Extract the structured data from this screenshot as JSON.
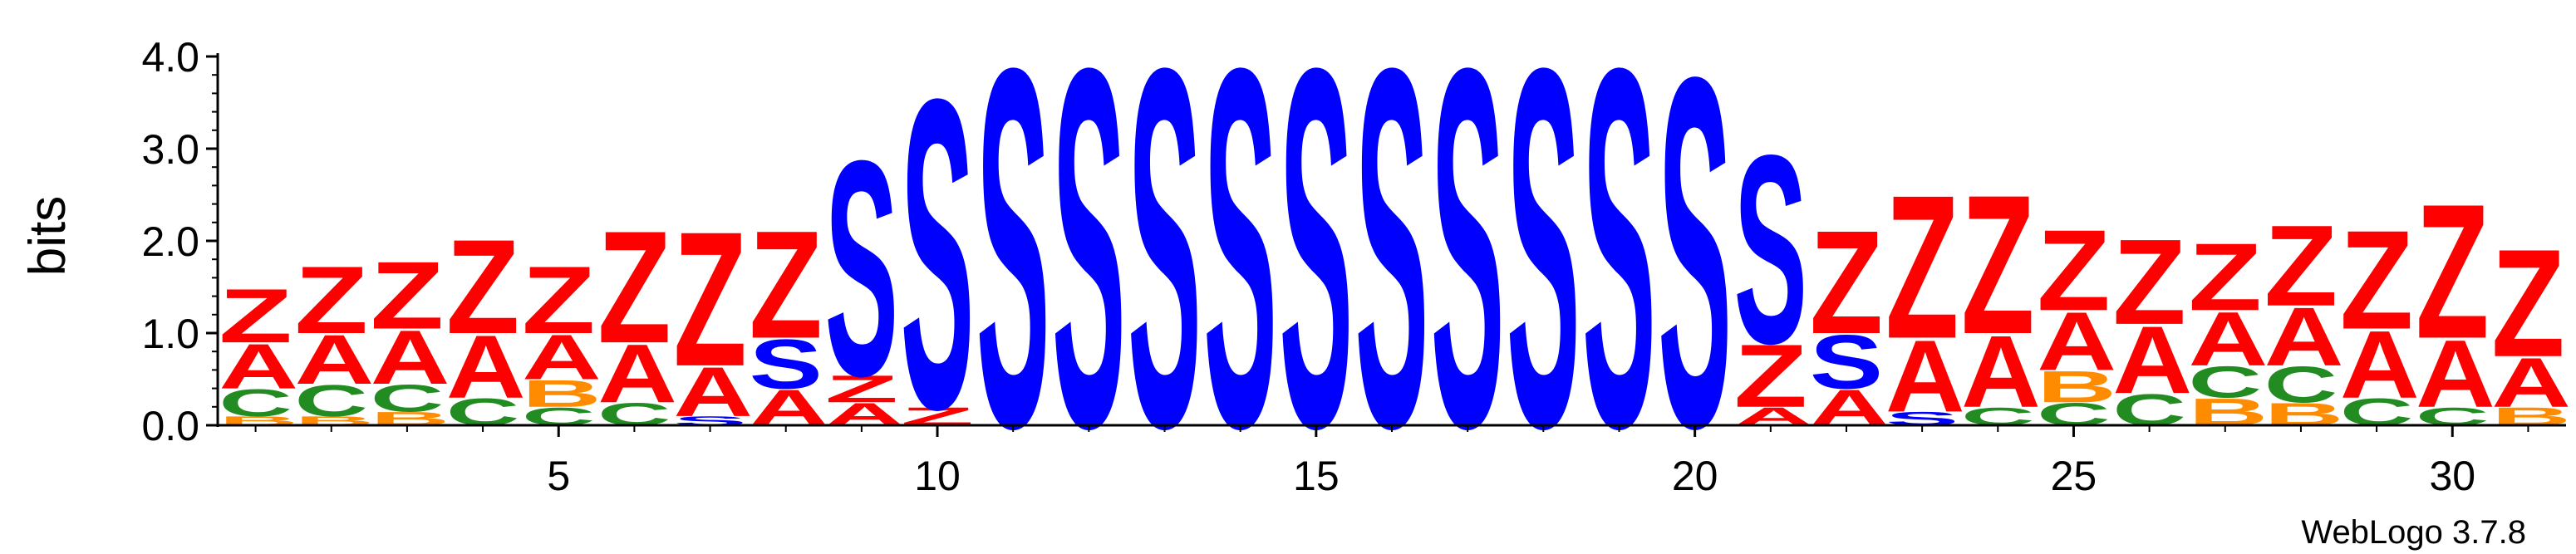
{
  "chart_data": {
    "type": "sequence-logo",
    "ylabel": "bits",
    "ylim": [
      0,
      4.0
    ],
    "y_ticks": [
      "0.0",
      "1.0",
      "2.0",
      "3.0",
      "4.0"
    ],
    "x_ticks": [
      "5",
      "10",
      "15",
      "20",
      "25",
      "30"
    ],
    "x_tick_values": [
      5,
      10,
      15,
      20,
      25,
      30
    ],
    "positions": 31,
    "credit": "WebLogo 3.7.8",
    "colors": {
      "Z": "#ff0000",
      "A": "#ff0000",
      "S": "#0000ff",
      "C": "#228b22",
      "B": "#ff8c00",
      "axis": "#000000"
    },
    "columns": [
      [
        [
          "B",
          0.1
        ],
        [
          "C",
          0.3
        ],
        [
          "A",
          0.5
        ],
        [
          "Z",
          0.6
        ]
      ],
      [
        [
          "B",
          0.1
        ],
        [
          "C",
          0.35
        ],
        [
          "A",
          0.55
        ],
        [
          "Z",
          0.75
        ]
      ],
      [
        [
          "B",
          0.15
        ],
        [
          "C",
          0.3
        ],
        [
          "A",
          0.6
        ],
        [
          "Z",
          0.75
        ]
      ],
      [
        [
          "C",
          0.3
        ],
        [
          "A",
          0.7
        ],
        [
          "Z",
          1.05
        ]
      ],
      [
        [
          "C",
          0.2
        ],
        [
          "B",
          0.3
        ],
        [
          "A",
          0.5
        ],
        [
          "Z",
          0.75
        ]
      ],
      [
        [
          "C",
          0.25
        ],
        [
          "A",
          0.65
        ],
        [
          "Z",
          1.25
        ]
      ],
      [
        [
          "S",
          0.1
        ],
        [
          "A",
          0.55
        ],
        [
          "Z",
          1.5
        ]
      ],
      [
        [
          "A",
          0.4
        ],
        [
          "S",
          0.55
        ],
        [
          "Z",
          1.2
        ]
      ],
      [
        [
          "A",
          0.25
        ],
        [
          "Z",
          0.3
        ],
        [
          "S",
          2.4
        ]
      ],
      [
        [
          "Z",
          0.2
        ],
        [
          "S",
          3.45
        ]
      ],
      [
        [
          "S",
          4.0
        ]
      ],
      [
        [
          "S",
          4.0
        ]
      ],
      [
        [
          "S",
          4.0
        ]
      ],
      [
        [
          "S",
          4.0
        ]
      ],
      [
        [
          "S",
          4.0
        ]
      ],
      [
        [
          "S",
          4.0
        ]
      ],
      [
        [
          "S",
          4.0
        ]
      ],
      [
        [
          "S",
          4.0
        ]
      ],
      [
        [
          "S",
          4.0
        ]
      ],
      [
        [
          "S",
          3.9
        ]
      ],
      [
        [
          "A",
          0.2
        ],
        [
          "Z",
          0.7
        ],
        [
          "S",
          2.1
        ]
      ],
      [
        [
          "A",
          0.4
        ],
        [
          "S",
          0.6
        ],
        [
          "Z",
          1.15
        ]
      ],
      [
        [
          "S",
          0.15
        ],
        [
          "A",
          0.8
        ],
        [
          "Z",
          1.6
        ]
      ],
      [
        [
          "C",
          0.2
        ],
        [
          "A",
          0.8
        ],
        [
          "Z",
          1.55
        ]
      ],
      [
        [
          "C",
          0.25
        ],
        [
          "B",
          0.35
        ],
        [
          "A",
          0.65
        ],
        [
          "Z",
          0.9
        ]
      ],
      [
        [
          "C",
          0.35
        ],
        [
          "A",
          0.75
        ],
        [
          "Z",
          0.95
        ]
      ],
      [
        [
          "B",
          0.3
        ],
        [
          "C",
          0.35
        ],
        [
          "A",
          0.6
        ],
        [
          "Z",
          0.75
        ]
      ],
      [
        [
          "B",
          0.25
        ],
        [
          "C",
          0.4
        ],
        [
          "A",
          0.65
        ],
        [
          "Z",
          0.9
        ]
      ],
      [
        [
          "C",
          0.3
        ],
        [
          "A",
          0.75
        ],
        [
          "Z",
          1.1
        ]
      ],
      [
        [
          "C",
          0.2
        ],
        [
          "A",
          0.75
        ],
        [
          "Z",
          1.5
        ]
      ],
      [
        [
          "B",
          0.2
        ],
        [
          "A",
          0.55
        ],
        [
          "Z",
          1.2
        ]
      ]
    ]
  }
}
